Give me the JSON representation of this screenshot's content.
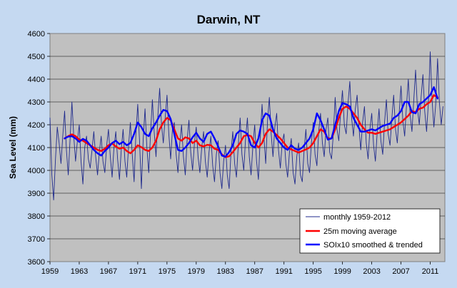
{
  "chart_data": {
    "type": "line",
    "title": "Darwin, NT",
    "xlabel": "",
    "ylabel": "Sea Level (mm)",
    "xlim": [
      1959,
      2013
    ],
    "ylim": [
      3600,
      4600
    ],
    "x_ticks": [
      "1959",
      "1963",
      "1967",
      "1971",
      "1975",
      "1979",
      "1983",
      "1987",
      "1991",
      "1995",
      "1999",
      "2003",
      "2007",
      "2011"
    ],
    "y_ticks": [
      "3600",
      "3700",
      "3800",
      "3900",
      "4000",
      "4100",
      "4200",
      "4300",
      "4400",
      "4500",
      "4600"
    ],
    "grid": "horizontal",
    "legend_position": "bottom-right",
    "plot_background": "#c0c0c0",
    "series": [
      {
        "name": "monthly 1959-2012",
        "color": "#1f2a8c",
        "style": "thin",
        "x": [
          1959.0,
          1959.25,
          1959.5,
          1959.75,
          1960.0,
          1960.25,
          1960.5,
          1960.75,
          1961.0,
          1961.25,
          1961.5,
          1961.75,
          1962.0,
          1962.25,
          1962.5,
          1962.75,
          1963.0,
          1963.25,
          1963.5,
          1963.75,
          1964.0,
          1964.25,
          1964.5,
          1964.75,
          1965.0,
          1965.25,
          1965.5,
          1965.75,
          1966.0,
          1966.25,
          1966.5,
          1966.75,
          1967.0,
          1967.25,
          1967.5,
          1967.75,
          1968.0,
          1968.25,
          1968.5,
          1968.75,
          1969.0,
          1969.25,
          1969.5,
          1969.75,
          1970.0,
          1970.25,
          1970.5,
          1970.75,
          1971.0,
          1971.25,
          1971.5,
          1971.75,
          1972.0,
          1972.25,
          1972.5,
          1972.75,
          1973.0,
          1973.25,
          1973.5,
          1973.75,
          1974.0,
          1974.25,
          1974.5,
          1974.75,
          1975.0,
          1975.25,
          1975.5,
          1975.75,
          1976.0,
          1976.25,
          1976.5,
          1976.75,
          1977.0,
          1977.25,
          1977.5,
          1977.75,
          1978.0,
          1978.25,
          1978.5,
          1978.75,
          1979.0,
          1979.25,
          1979.5,
          1979.75,
          1980.0,
          1980.25,
          1980.5,
          1980.75,
          1981.0,
          1981.25,
          1981.5,
          1981.75,
          1982.0,
          1982.25,
          1982.5,
          1982.75,
          1983.0,
          1983.25,
          1983.5,
          1983.75,
          1984.0,
          1984.25,
          1984.5,
          1984.75,
          1985.0,
          1985.25,
          1985.5,
          1985.75,
          1986.0,
          1986.25,
          1986.5,
          1986.75,
          1987.0,
          1987.25,
          1987.5,
          1987.75,
          1988.0,
          1988.25,
          1988.5,
          1988.75,
          1989.0,
          1989.25,
          1989.5,
          1989.75,
          1990.0,
          1990.25,
          1990.5,
          1990.75,
          1991.0,
          1991.25,
          1991.5,
          1991.75,
          1992.0,
          1992.25,
          1992.5,
          1992.75,
          1993.0,
          1993.25,
          1993.5,
          1993.75,
          1994.0,
          1994.25,
          1994.5,
          1994.75,
          1995.0,
          1995.25,
          1995.5,
          1995.75,
          1996.0,
          1996.25,
          1996.5,
          1996.75,
          1997.0,
          1997.25,
          1997.5,
          1997.75,
          1998.0,
          1998.25,
          1998.5,
          1998.75,
          1999.0,
          1999.25,
          1999.5,
          1999.75,
          2000.0,
          2000.25,
          2000.5,
          2000.75,
          2001.0,
          2001.25,
          2001.5,
          2001.75,
          2002.0,
          2002.25,
          2002.5,
          2002.75,
          2003.0,
          2003.25,
          2003.5,
          2003.75,
          2004.0,
          2004.25,
          2004.5,
          2004.75,
          2005.0,
          2005.25,
          2005.5,
          2005.75,
          2006.0,
          2006.25,
          2006.5,
          2006.75,
          2007.0,
          2007.25,
          2007.5,
          2007.75,
          2008.0,
          2008.25,
          2008.5,
          2008.75,
          2009.0,
          2009.25,
          2009.5,
          2009.75,
          2010.0,
          2010.25,
          2010.5,
          2010.75,
          2011.0,
          2011.25,
          2011.5,
          2011.75,
          2012.0,
          2012.25,
          2012.5,
          2012.75
        ],
        "y": [
          4230,
          3980,
          3870,
          4050,
          4190,
          4120,
          4030,
          4150,
          4260,
          4090,
          3980,
          4140,
          4300,
          4150,
          4040,
          4130,
          4200,
          4040,
          3940,
          4100,
          4150,
          4050,
          4010,
          4090,
          4170,
          4060,
          3980,
          4080,
          4150,
          4040,
          3990,
          4110,
          4180,
          4060,
          3970,
          4100,
          4170,
          4050,
          3960,
          4090,
          4180,
          4040,
          3970,
          4110,
          4210,
          4070,
          3950,
          4160,
          4290,
          4130,
          3920,
          4140,
          4270,
          4100,
          3990,
          4160,
          4310,
          4170,
          4060,
          4240,
          4360,
          4200,
          4120,
          4230,
          4330,
          4160,
          4050,
          4180,
          4210,
          4070,
          3990,
          4120,
          4200,
          4060,
          3980,
          4130,
          4220,
          4080,
          4000,
          4120,
          4190,
          4060,
          3990,
          4100,
          4170,
          4040,
          3970,
          4080,
          4150,
          4020,
          3950,
          4070,
          4130,
          3990,
          3920,
          4040,
          4110,
          3980,
          3920,
          4080,
          4170,
          4030,
          3970,
          4110,
          4230,
          4070,
          4000,
          4140,
          4230,
          4060,
          3980,
          4110,
          4200,
          4040,
          3960,
          4140,
          4290,
          4150,
          4030,
          4220,
          4320,
          4160,
          4060,
          4190,
          4250,
          4090,
          4010,
          4120,
          4160,
          4030,
          3970,
          4080,
          4140,
          3990,
          3940,
          4060,
          4120,
          3980,
          3950,
          4090,
          4180,
          4030,
          3990,
          4120,
          4210,
          4070,
          4020,
          4170,
          4250,
          4120,
          4060,
          4180,
          4230,
          4080,
          4050,
          4160,
          4320,
          4180,
          4130,
          4260,
          4350,
          4200,
          4160,
          4290,
          4390,
          4230,
          4150,
          4270,
          4330,
          4190,
          4090,
          4210,
          4280,
          4120,
          4050,
          4180,
          4250,
          4110,
          4040,
          4170,
          4270,
          4130,
          4070,
          4210,
          4310,
          4160,
          4110,
          4230,
          4330,
          4180,
          4120,
          4250,
          4370,
          4220,
          4150,
          4280,
          4400,
          4240,
          4170,
          4310,
          4440,
          4270,
          4200,
          4320,
          4420,
          4260,
          4170,
          4300,
          4520,
          4310,
          4190,
          4290,
          4490,
          4300,
          4200,
          4280
        ]
      },
      {
        "name": "25m moving average",
        "color": "#ff0000",
        "style": "thick",
        "x": [
          1961.0,
          1961.5,
          1962.0,
          1962.5,
          1963.0,
          1963.5,
          1964.0,
          1964.5,
          1965.0,
          1965.5,
          1966.0,
          1966.5,
          1967.0,
          1967.5,
          1968.0,
          1968.5,
          1969.0,
          1969.5,
          1970.0,
          1970.5,
          1971.0,
          1971.5,
          1972.0,
          1972.5,
          1973.0,
          1973.5,
          1974.0,
          1974.5,
          1975.0,
          1975.5,
          1976.0,
          1976.5,
          1977.0,
          1977.5,
          1978.0,
          1978.5,
          1979.0,
          1979.5,
          1980.0,
          1980.5,
          1981.0,
          1981.5,
          1982.0,
          1982.5,
          1983.0,
          1983.5,
          1984.0,
          1984.5,
          1985.0,
          1985.5,
          1986.0,
          1986.5,
          1987.0,
          1987.5,
          1988.0,
          1988.5,
          1989.0,
          1989.5,
          1990.0,
          1990.5,
          1991.0,
          1991.5,
          1992.0,
          1992.5,
          1993.0,
          1993.5,
          1994.0,
          1994.5,
          1995.0,
          1995.5,
          1996.0,
          1996.5,
          1997.0,
          1997.5,
          1998.0,
          1998.5,
          1999.0,
          1999.5,
          2000.0,
          2000.5,
          2001.0,
          2001.5,
          2002.0,
          2002.5,
          2003.0,
          2003.5,
          2004.0,
          2004.5,
          2005.0,
          2005.5,
          2006.0,
          2006.5,
          2007.0,
          2007.5,
          2008.0,
          2008.5,
          2009.0,
          2009.5,
          2010.0,
          2010.5,
          2011.0,
          2011.5,
          2012.0
        ],
        "y": [
          4140,
          4150,
          4158,
          4150,
          4135,
          4130,
          4120,
          4110,
          4100,
          4090,
          4085,
          4095,
          4110,
          4118,
          4105,
          4095,
          4100,
          4085,
          4075,
          4090,
          4110,
          4102,
          4090,
          4085,
          4100,
          4130,
          4180,
          4210,
          4230,
          4220,
          4180,
          4140,
          4130,
          4145,
          4140,
          4120,
          4130,
          4110,
          4105,
          4112,
          4110,
          4095,
          4090,
          4070,
          4058,
          4062,
          4080,
          4100,
          4120,
          4150,
          4155,
          4150,
          4120,
          4100,
          4120,
          4160,
          4180,
          4170,
          4155,
          4140,
          4120,
          4100,
          4092,
          4085,
          4078,
          4085,
          4092,
          4100,
          4120,
          4150,
          4180,
          4170,
          4140,
          4140,
          4180,
          4230,
          4270,
          4280,
          4270,
          4250,
          4230,
          4200,
          4180,
          4165,
          4165,
          4160,
          4165,
          4170,
          4175,
          4180,
          4190,
          4200,
          4210,
          4225,
          4240,
          4260,
          4255,
          4270,
          4275,
          4290,
          4300,
          4330,
          4320
        ]
      },
      {
        "name": "SOIx10 smoothed & trended",
        "color": "#0000ff",
        "style": "thick",
        "x": [
          1961.0,
          1961.5,
          1962.0,
          1962.5,
          1963.0,
          1963.5,
          1964.0,
          1964.5,
          1965.0,
          1965.5,
          1966.0,
          1966.5,
          1967.0,
          1967.5,
          1968.0,
          1968.5,
          1969.0,
          1969.5,
          1970.0,
          1970.5,
          1971.0,
          1971.5,
          1972.0,
          1972.5,
          1973.0,
          1973.5,
          1974.0,
          1974.5,
          1975.0,
          1975.5,
          1976.0,
          1976.5,
          1977.0,
          1977.5,
          1978.0,
          1978.5,
          1979.0,
          1979.5,
          1980.0,
          1980.5,
          1981.0,
          1981.5,
          1982.0,
          1982.5,
          1983.0,
          1983.5,
          1984.0,
          1984.5,
          1985.0,
          1985.5,
          1986.0,
          1986.5,
          1987.0,
          1987.5,
          1988.0,
          1988.5,
          1989.0,
          1989.5,
          1990.0,
          1990.5,
          1991.0,
          1991.5,
          1992.0,
          1992.5,
          1993.0,
          1993.5,
          1994.0,
          1994.5,
          1995.0,
          1995.5,
          1996.0,
          1996.5,
          1997.0,
          1997.5,
          1998.0,
          1998.5,
          1999.0,
          1999.5,
          2000.0,
          2000.5,
          2001.0,
          2001.5,
          2002.0,
          2002.5,
          2003.0,
          2003.5,
          2004.0,
          2004.5,
          2005.0,
          2005.5,
          2006.0,
          2006.5,
          2007.0,
          2007.5,
          2008.0,
          2008.5,
          2009.0,
          2009.5,
          2010.0,
          2010.5,
          2011.0,
          2011.5,
          2012.0
        ],
        "y": [
          4140,
          4148,
          4150,
          4140,
          4125,
          4138,
          4130,
          4110,
          4090,
          4075,
          4065,
          4085,
          4100,
          4120,
          4130,
          4115,
          4125,
          4110,
          4120,
          4160,
          4210,
          4190,
          4160,
          4150,
          4185,
          4210,
          4240,
          4265,
          4260,
          4225,
          4160,
          4090,
          4085,
          4100,
          4120,
          4145,
          4165,
          4140,
          4125,
          4160,
          4170,
          4140,
          4105,
          4065,
          4060,
          4080,
          4110,
          4160,
          4175,
          4170,
          4160,
          4110,
          4100,
          4140,
          4220,
          4250,
          4240,
          4180,
          4140,
          4120,
          4100,
          4090,
          4110,
          4095,
          4090,
          4100,
          4120,
          4140,
          4180,
          4250,
          4220,
          4180,
          4135,
          4140,
          4200,
          4260,
          4295,
          4290,
          4280,
          4230,
          4200,
          4170,
          4170,
          4175,
          4180,
          4175,
          4185,
          4195,
          4200,
          4205,
          4230,
          4240,
          4260,
          4300,
          4300,
          4255,
          4250,
          4290,
          4300,
          4315,
          4330,
          4365,
          4315
        ]
      }
    ]
  }
}
